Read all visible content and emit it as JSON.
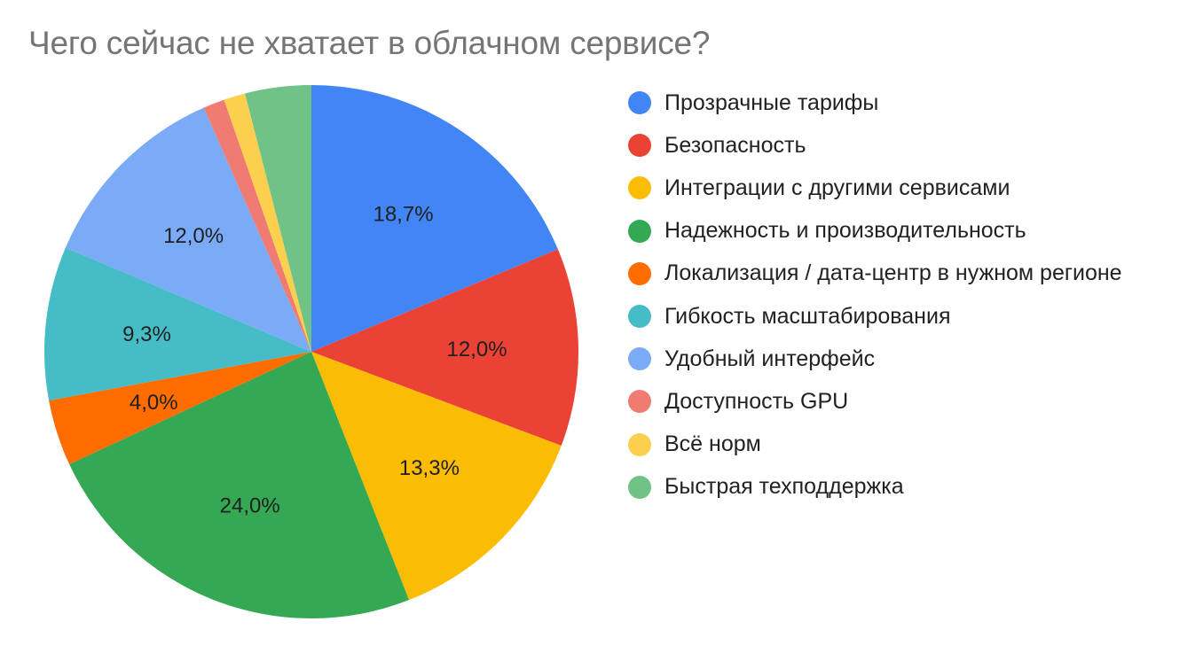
{
  "chart_data": {
    "type": "pie",
    "title": "Чего сейчас не хватает в облачном сервисе?",
    "legend_position": "right",
    "start_angle_deg": 0,
    "direction": "clockwise",
    "slices": [
      {
        "label": "Прозрачные тарифы",
        "value": 18.7,
        "display": "18,7%",
        "color": "#4285F4",
        "show_label": true
      },
      {
        "label": "Безопасность",
        "value": 12.0,
        "display": "12,0%",
        "color": "#EA4335",
        "show_label": true
      },
      {
        "label": "Интеграции с другими сервисами",
        "value": 13.3,
        "display": "13,3%",
        "color": "#FBBC04",
        "show_label": true
      },
      {
        "label": "Надежность и производительность",
        "value": 24.0,
        "display": "24,0%",
        "color": "#34A853",
        "show_label": true
      },
      {
        "label": "Локализация / дата-центр в нужном регионе",
        "value": 4.0,
        "display": "4,0%",
        "color": "#FF6D01",
        "show_label": true
      },
      {
        "label": "Гибкость масштабирования",
        "value": 9.3,
        "display": "9,3%",
        "color": "#46BDC6",
        "show_label": true
      },
      {
        "label": "Удобный интерфейс",
        "value": 12.0,
        "display": "12,0%",
        "color": "#7BAAF7",
        "show_label": true
      },
      {
        "label": "Доступность GPU",
        "value": 1.3,
        "display": "1,3%",
        "color": "#F07B72",
        "show_label": false
      },
      {
        "label": "Всё норм",
        "value": 1.3,
        "display": "1,3%",
        "color": "#FCD04F",
        "show_label": false
      },
      {
        "label": "Быстрая техподдержка",
        "value": 4.0,
        "display": "4,0%",
        "color": "#71C287",
        "show_label": false
      }
    ]
  }
}
